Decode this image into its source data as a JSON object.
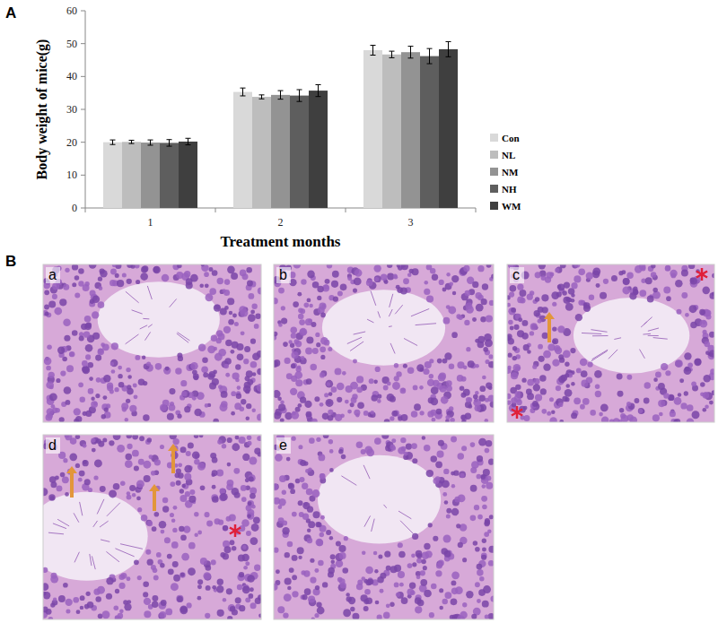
{
  "chart_data": {
    "type": "bar",
    "xlabel": "Treatment months",
    "ylabel": "Body weight of mice(g)",
    "categories": [
      "1",
      "2",
      "3"
    ],
    "series": [
      {
        "name": "Con",
        "color": "#d9d9d9",
        "values": [
          20.0,
          35.3,
          48.0
        ],
        "errors": [
          0.7,
          1.2,
          1.5
        ]
      },
      {
        "name": "NL",
        "color": "#bdbdbd",
        "values": [
          20.1,
          33.8,
          46.7
        ],
        "errors": [
          0.5,
          0.6,
          1.0
        ]
      },
      {
        "name": "NM",
        "color": "#939393",
        "values": [
          19.9,
          34.4,
          47.4
        ],
        "errors": [
          0.8,
          1.3,
          1.8
        ]
      },
      {
        "name": "NH",
        "color": "#5e5e5e",
        "values": [
          19.8,
          34.2,
          46.2
        ],
        "errors": [
          1.0,
          1.8,
          2.3
        ]
      },
      {
        "name": "WM",
        "color": "#3f3f3f",
        "values": [
          20.2,
          35.7,
          48.3
        ],
        "errors": [
          1.0,
          1.8,
          2.3
        ]
      }
    ],
    "ylim": [
      0,
      60
    ],
    "yticks": [
      0,
      10,
      20,
      30,
      40,
      50,
      60
    ],
    "legend": "right"
  },
  "panel_labels": [
    "A",
    "B"
  ],
  "histology": {
    "images": [
      "a",
      "b",
      "c",
      "d",
      "e"
    ]
  }
}
